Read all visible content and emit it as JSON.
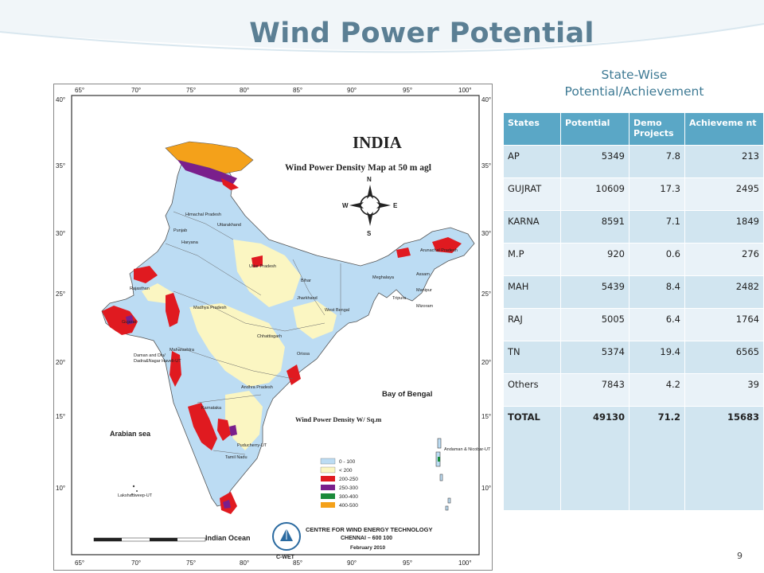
{
  "slide": {
    "title": "Wind Power Potential",
    "subtitle_line1": "State-Wise",
    "subtitle_line2": "Potential/Achievement",
    "page_number": "9"
  },
  "map": {
    "country": "INDIA",
    "map_title": "Wind Power Density  Map at 50 m agl",
    "legend_title": "Wind Power Density W/ Sq.m",
    "compass": [
      "N",
      "S",
      "W",
      "E"
    ],
    "sea_labels": [
      "Arabian sea",
      "Bay of Bengal",
      "Indian Ocean"
    ],
    "lon_ticks": [
      "65°",
      "70°",
      "75°",
      "80°",
      "85°",
      "90°",
      "95°",
      "100°"
    ],
    "lat_ticks": [
      "40°",
      "35°",
      "30°",
      "25°",
      "20°",
      "15°",
      "10°"
    ],
    "legend": [
      {
        "label": "0 - 100",
        "color": "#bcdcf3"
      },
      {
        "label": "< 200",
        "color": "#fbf6c2"
      },
      {
        "label": "200-250",
        "color": "#e01a20"
      },
      {
        "label": "250-300",
        "color": "#7a1f8c"
      },
      {
        "label": "300-400",
        "color": "#1b8a3a"
      },
      {
        "label": "400-500",
        "color": "#f4a11a"
      }
    ],
    "institute": "CENTRE FOR WIND ENERGY TECHNOLOGY",
    "institute_city": "CHENNAI – 600 100",
    "logo_text": "C-WET",
    "date": "February 2010"
  },
  "table": {
    "headers": [
      "States",
      "Potential",
      "Demo Projects",
      "Achieveme nt"
    ],
    "rows": [
      {
        "state": "AP",
        "potential": "5349",
        "demo": "7.8",
        "achievement": "213"
      },
      {
        "state": "GUJRAT",
        "potential": "10609",
        "demo": "17.3",
        "achievement": "2495"
      },
      {
        "state": "KARNA",
        "potential": "8591",
        "demo": "7.1",
        "achievement": "1849"
      },
      {
        "state": "M.P",
        "potential": "920",
        "demo": "0.6",
        "achievement": "276"
      },
      {
        "state": "MAH",
        "potential": "5439",
        "demo": "8.4",
        "achievement": "2482"
      },
      {
        "state": "RAJ",
        "potential": "5005",
        "demo": "6.4",
        "achievement": "1764"
      },
      {
        "state": "TN",
        "potential": "5374",
        "demo": "19.4",
        "achievement": "6565"
      },
      {
        "state": "Others",
        "potential": "7843",
        "demo": "4.2",
        "achievement": "39"
      }
    ],
    "total": {
      "state": "TOTAL",
      "potential": "49130",
      "demo": "71.2",
      "achievement": "15683"
    }
  }
}
